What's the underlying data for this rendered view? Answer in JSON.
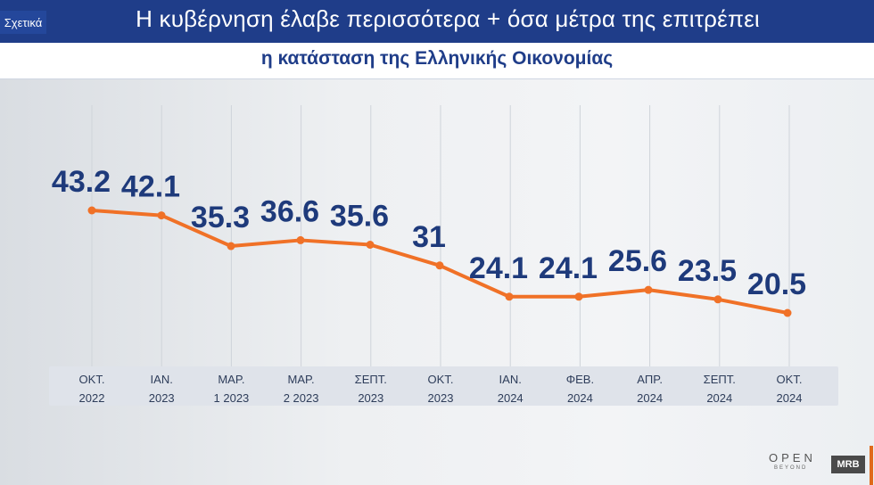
{
  "header": {
    "tag": "Σχετικά",
    "headline": "Η κυβέρνηση έλαβε περισσότερα + όσα μέτρα της επιτρέπει",
    "subtitle": "η κατάσταση της Ελληνικής Οικονομίας"
  },
  "logos": {
    "open": "OPEN",
    "open_sub": "BEYOND",
    "mrb": "MRB"
  },
  "colors": {
    "line": "#f07127",
    "value_text": "#1e3a7b",
    "header_bg": "#1f3d89",
    "axis_band": "#dfe3ea"
  },
  "chart_data": {
    "type": "line",
    "categories": [
      [
        "ΟΚΤ.",
        "2022"
      ],
      [
        "ΙΑΝ.",
        "2023"
      ],
      [
        "ΜΑΡ.",
        "1 2023"
      ],
      [
        "ΜΑΡ.",
        "2 2023"
      ],
      [
        "ΣΕΠΤ.",
        "2023"
      ],
      [
        "ΟΚΤ.",
        "2023"
      ],
      [
        "ΙΑΝ.",
        "2024"
      ],
      [
        "ΦΕΒ.",
        "2024"
      ],
      [
        "ΑΠΡ.",
        "2024"
      ],
      [
        "ΣΕΠΤ.",
        "2024"
      ],
      [
        "ΟΚΤ.",
        "2024"
      ]
    ],
    "value_labels": [
      "43.2",
      "42.1",
      "35.3",
      "36.6",
      "35.6",
      "31",
      "24.1",
      "24.1",
      "25.6",
      "23.5",
      "20.5"
    ],
    "series": [
      {
        "values": [
          43.2,
          42.1,
          35.3,
          36.6,
          35.6,
          31,
          24.1,
          24.1,
          25.6,
          23.5,
          20.5
        ]
      }
    ],
    "grid": true
  }
}
